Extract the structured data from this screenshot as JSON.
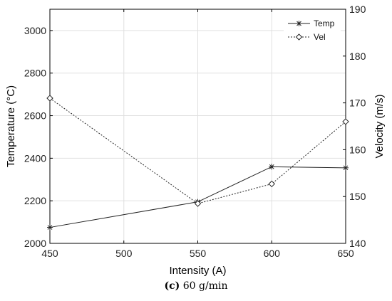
{
  "chart_data": {
    "type": "line",
    "xlabel": "Intensity (A)",
    "ylabel_left": "Temperature (°C)",
    "ylabel_right": "Velocity (m/s)",
    "xlim": [
      450,
      650
    ],
    "ylim_left": [
      2000,
      3100
    ],
    "ylim_right": [
      140,
      190
    ],
    "x_ticks": [
      450,
      500,
      550,
      600,
      650
    ],
    "y_ticks_left": [
      2000,
      2200,
      2400,
      2600,
      2800,
      3000
    ],
    "y_ticks_right": [
      140,
      150,
      160,
      170,
      180,
      190
    ],
    "grid": true,
    "legend_position": "top-right",
    "series": [
      {
        "name": "Temp",
        "axis": "left",
        "marker": "asterisk",
        "line": "solid",
        "x": [
          450,
          550,
          600,
          650
        ],
        "values": [
          2075,
          2195,
          2360,
          2355
        ]
      },
      {
        "name": "Vel",
        "axis": "right",
        "marker": "diamond",
        "line": "dotted",
        "x": [
          450,
          550,
          600,
          650
        ],
        "values": [
          171,
          148.5,
          152.7,
          166
        ]
      }
    ]
  },
  "caption": {
    "label": "(c)",
    "text": "60 g/min"
  },
  "colors": {
    "line": "#222222",
    "grid": "#e0e0e0",
    "axis": "#000000"
  }
}
